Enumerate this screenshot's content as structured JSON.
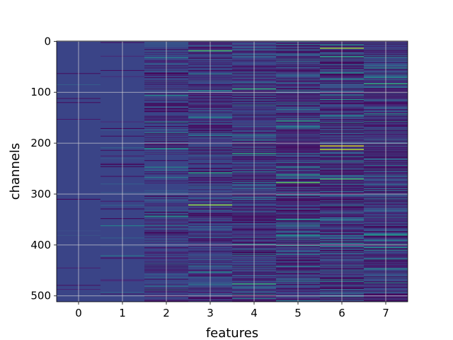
{
  "chart_data": {
    "type": "heatmap",
    "xlabel": "features",
    "ylabel": "channels",
    "x_ticks": [
      "0",
      "1",
      "2",
      "3",
      "4",
      "5",
      "6",
      "7"
    ],
    "y_ticks": [
      "0",
      "100",
      "200",
      "300",
      "400",
      "500"
    ],
    "y_tick_values": [
      0,
      100,
      200,
      300,
      400,
      500
    ],
    "n_features": 8,
    "n_channels": 512,
    "grid": true,
    "colormap": "viridis",
    "base_color": "#3a4487",
    "column_activity": [
      0.02,
      0.06,
      0.35,
      0.55,
      0.7,
      0.8,
      0.85,
      0.75
    ],
    "highlights": [
      {
        "feature": 3,
        "channel": 18,
        "value": 0.7
      },
      {
        "feature": 4,
        "channel": 93,
        "value": 0.65
      },
      {
        "feature": 5,
        "channel": 156,
        "value": 0.6
      },
      {
        "feature": 6,
        "channel": 13,
        "value": 0.85
      },
      {
        "feature": 6,
        "channel": 30,
        "value": 0.6
      },
      {
        "feature": 6,
        "channel": 205,
        "value": 0.95
      },
      {
        "feature": 6,
        "channel": 212,
        "value": 0.9
      },
      {
        "feature": 6,
        "channel": 270,
        "value": 0.7
      },
      {
        "feature": 7,
        "channel": 83,
        "value": 0.65
      },
      {
        "feature": 2,
        "channel": 210,
        "value": 0.5
      },
      {
        "feature": 3,
        "channel": 258,
        "value": 0.6
      },
      {
        "feature": 3,
        "channel": 321,
        "value": 0.85
      },
      {
        "feature": 4,
        "channel": 220,
        "value": 0.6
      },
      {
        "feature": 4,
        "channel": 476,
        "value": 0.65
      },
      {
        "feature": 5,
        "channel": 277,
        "value": 0.75
      },
      {
        "feature": 5,
        "channel": 262,
        "value": 0.55
      },
      {
        "feature": 7,
        "channel": 380,
        "value": 0.55
      }
    ]
  }
}
